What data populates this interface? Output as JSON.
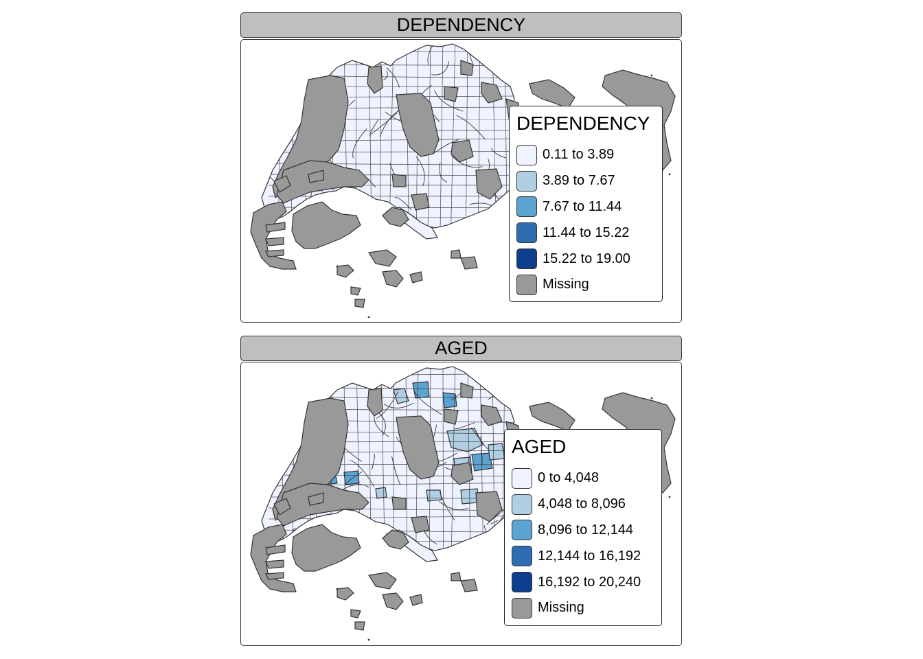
{
  "panels": [
    {
      "title": "DEPENDENCY",
      "legend": {
        "title": "DEPENDENCY",
        "items": [
          {
            "label": "0.11 to 3.89",
            "color": "#eff3ff"
          },
          {
            "label": "3.89 to 7.67",
            "color": "#b0cfe3"
          },
          {
            "label": "7.67 to 11.44",
            "color": "#5ba3d1"
          },
          {
            "label": "11.44 to 15.22",
            "color": "#2d6eb3"
          },
          {
            "label": "15.22 to 19.00",
            "color": "#0d3f8e"
          },
          {
            "label": "Missing",
            "color": "#999999"
          }
        ]
      }
    },
    {
      "title": "AGED",
      "legend": {
        "title": "AGED",
        "items": [
          {
            "label": "0 to 4,048",
            "color": "#eff3ff"
          },
          {
            "label": "4,048 to 8,096",
            "color": "#b0cfe3"
          },
          {
            "label": "8,096 to 12,144",
            "color": "#5ba3d1"
          },
          {
            "label": "12,144 to 16,192",
            "color": "#2d6eb3"
          },
          {
            "label": "16,192 to 20,240",
            "color": "#0d3f8e"
          },
          {
            "label": "Missing",
            "color": "#999999"
          }
        ]
      }
    }
  ]
}
